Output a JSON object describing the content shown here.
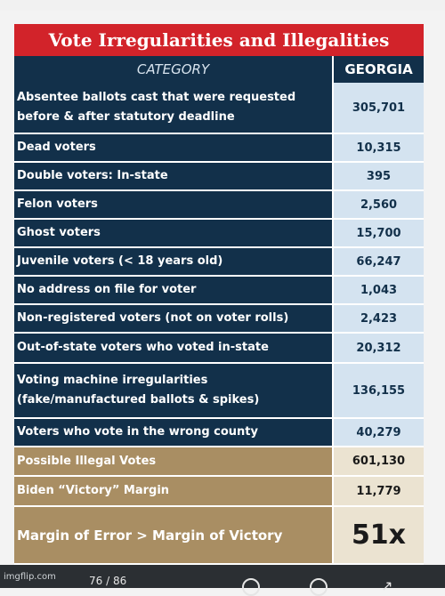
{
  "title": "Vote Irregularities and Illegalities",
  "header": {
    "category": "CATEGORY",
    "state": "GEORGIA"
  },
  "rows": [
    {
      "label": "Absentee ballots cast that were requested before & after statutory deadline",
      "value": "305,701"
    },
    {
      "label": "Dead voters",
      "value": "10,315"
    },
    {
      "label": "Double voters: In-state",
      "value": "395"
    },
    {
      "label": "Felon voters",
      "value": "2,560"
    },
    {
      "label": "Ghost voters",
      "value": "15,700"
    },
    {
      "label": "Juvenile voters (< 18 years old)",
      "value": "66,247"
    },
    {
      "label": "No address on file for voter",
      "value": "1,043"
    },
    {
      "label": "Non-registered voters (not on voter rolls)",
      "value": "2,423"
    },
    {
      "label": "Out-of-state voters who voted in-state",
      "value": "20,312"
    },
    {
      "label": "Voting machine irregularities (fake/manufactured ballots & spikes)",
      "value": "136,155"
    },
    {
      "label": "Voters who vote in the wrong county",
      "value": "40,279"
    }
  ],
  "summary": [
    {
      "label": "Possible Illegal Votes",
      "value": "601,130"
    },
    {
      "label": "Biden “Victory” Margin",
      "value": "11,779"
    },
    {
      "label": "Margin of Error > Margin of Victory",
      "value": "51x"
    }
  ],
  "watermark": "imgflip.com",
  "pager": "76 / 86",
  "colors": {
    "title_red": "#d2232a",
    "navy": "#12304a",
    "light_blue": "#d4e3f0",
    "tan": "#a98e63",
    "cream": "#ebe3d1"
  }
}
